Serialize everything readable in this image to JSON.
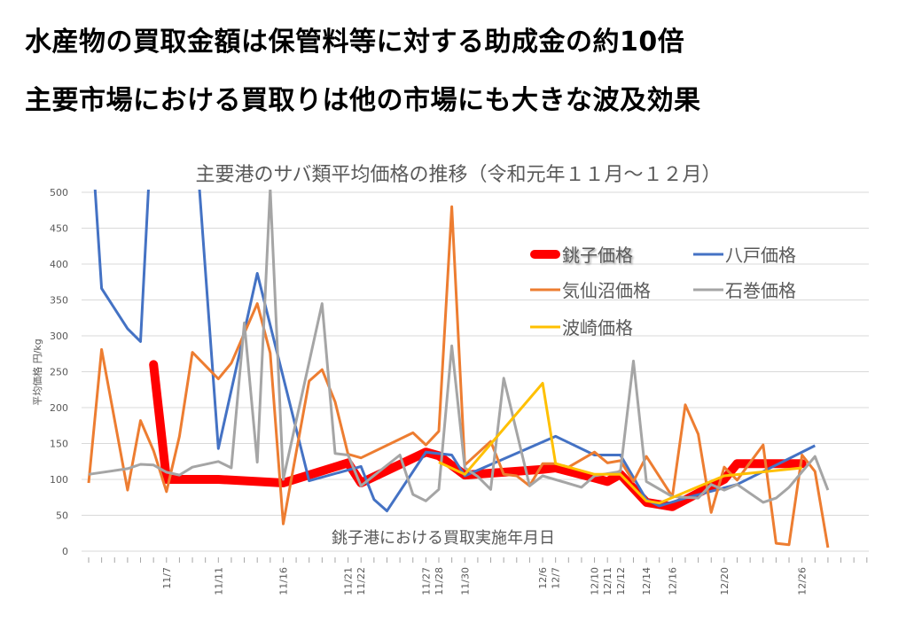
{
  "headlines": [
    "水産物の買取金額は保管料等に対する助成金の約10倍",
    "主要市場における買取りは他の市場にも大きな波及効果"
  ],
  "chart_data": {
    "type": "line",
    "title": "主要港のサバ類平均価格の推移（令和元年１１月～１２月）",
    "xlabel": "銚子港における買取実施年月日",
    "ylabel": "平均価格 円/kg",
    "ylim": [
      0,
      500
    ],
    "yticks": [
      0,
      50,
      100,
      150,
      200,
      250,
      300,
      350,
      400,
      450,
      500
    ],
    "x_range": [
      "11/1",
      "12/31"
    ],
    "x_tick_labels": [
      "11/7",
      "11/11",
      "11/16",
      "11/21",
      "11/22",
      "11/27",
      "11/28",
      "11/30",
      "12/6",
      "12/7",
      "12/10",
      "12/11",
      "12/12",
      "12/14",
      "12/16",
      "12/20",
      "12/26"
    ],
    "grid": true,
    "legend": "top-right",
    "series": [
      {
        "name": "銚子価格",
        "color": "#FF0000",
        "points": [
          [
            "11/6",
            260
          ],
          [
            "11/7",
            100
          ],
          [
            "11/11",
            100
          ],
          [
            "11/16",
            95
          ],
          [
            "11/21",
            123
          ],
          [
            "11/22",
            95
          ],
          [
            "11/27",
            138
          ],
          [
            "11/28",
            133
          ],
          [
            "11/30",
            106
          ],
          [
            "12/6",
            114
          ],
          [
            "12/7",
            116
          ],
          [
            "12/10",
            102
          ],
          [
            "12/11",
            97
          ],
          [
            "12/12",
            107
          ],
          [
            "12/14",
            68
          ],
          [
            "12/16",
            62
          ],
          [
            "12/20",
            100
          ],
          [
            "12/21",
            122
          ],
          [
            "12/26",
            122
          ]
        ]
      },
      {
        "name": "八戸価格",
        "color": "#4472C4",
        "points": [
          [
            "11/1",
            640
          ],
          [
            "11/2",
            366
          ],
          [
            "11/4",
            310
          ],
          [
            "11/5",
            292
          ],
          [
            "11/6",
            640
          ],
          [
            "11/9",
            640
          ],
          [
            "11/11",
            143
          ],
          [
            "11/14",
            387
          ],
          [
            "11/18",
            98
          ],
          [
            "11/22",
            118
          ],
          [
            "11/23",
            72
          ],
          [
            "11/24",
            56
          ],
          [
            "11/27",
            138
          ],
          [
            "11/29",
            134
          ],
          [
            "11/30",
            105
          ],
          [
            "12/7",
            160
          ],
          [
            "12/10",
            134
          ],
          [
            "12/12",
            134
          ],
          [
            "12/14",
            72
          ],
          [
            "12/15",
            63
          ],
          [
            "12/17",
            74
          ],
          [
            "12/21",
            93
          ],
          [
            "12/27",
            147
          ]
        ]
      },
      {
        "name": "気仙沼価格",
        "color": "#ED7D31",
        "points": [
          [
            "11/1",
            95
          ],
          [
            "11/2",
            281
          ],
          [
            "11/4",
            85
          ],
          [
            "11/5",
            182
          ],
          [
            "11/6",
            140
          ],
          [
            "11/7",
            83
          ],
          [
            "11/8",
            160
          ],
          [
            "11/9",
            277
          ],
          [
            "11/11",
            240
          ],
          [
            "11/12",
            262
          ],
          [
            "11/14",
            345
          ],
          [
            "11/15",
            276
          ],
          [
            "11/16",
            38
          ],
          [
            "11/18",
            237
          ],
          [
            "11/19",
            253
          ],
          [
            "11/20",
            208
          ],
          [
            "11/21",
            135
          ],
          [
            "11/22",
            130
          ],
          [
            "11/26",
            165
          ],
          [
            "11/27",
            148
          ],
          [
            "11/28",
            167
          ],
          [
            "11/29",
            480
          ],
          [
            "11/30",
            120
          ],
          [
            "12/2",
            153
          ],
          [
            "12/3",
            107
          ],
          [
            "12/4",
            105
          ],
          [
            "12/5",
            91
          ],
          [
            "12/6",
            122
          ],
          [
            "12/7",
            122
          ],
          [
            "12/8",
            117
          ],
          [
            "12/10",
            138
          ],
          [
            "12/11",
            123
          ],
          [
            "12/12",
            126
          ],
          [
            "12/13",
            97
          ],
          [
            "12/14",
            132
          ],
          [
            "12/16",
            76
          ],
          [
            "12/17",
            204
          ],
          [
            "12/18",
            163
          ],
          [
            "12/19",
            54
          ],
          [
            "12/20",
            117
          ],
          [
            "12/21",
            99
          ],
          [
            "12/23",
            148
          ],
          [
            "12/24",
            11
          ],
          [
            "12/25",
            9
          ],
          [
            "12/26",
            134
          ],
          [
            "12/27",
            111
          ],
          [
            "12/28",
            5
          ]
        ]
      },
      {
        "name": "石巻価格",
        "color": "#A5A5A5",
        "points": [
          [
            "11/1",
            107
          ],
          [
            "11/4",
            115
          ],
          [
            "11/5",
            121
          ],
          [
            "11/6",
            120
          ],
          [
            "11/7",
            110
          ],
          [
            "11/8",
            106
          ],
          [
            "11/9",
            117
          ],
          [
            "11/11",
            125
          ],
          [
            "11/12",
            116
          ],
          [
            "11/13",
            318
          ],
          [
            "11/14",
            124
          ],
          [
            "11/15",
            505
          ],
          [
            "11/16",
            100
          ],
          [
            "11/19",
            345
          ],
          [
            "11/20",
            136
          ],
          [
            "11/21",
            134
          ],
          [
            "11/22",
            91
          ],
          [
            "11/25",
            134
          ],
          [
            "11/26",
            79
          ],
          [
            "11/27",
            70
          ],
          [
            "11/28",
            86
          ],
          [
            "11/29",
            286
          ],
          [
            "11/30",
            116
          ],
          [
            "12/1",
            104
          ],
          [
            "12/2",
            86
          ],
          [
            "12/3",
            241
          ],
          [
            "12/5",
            91
          ],
          [
            "12/6",
            105
          ],
          [
            "12/9",
            89
          ],
          [
            "12/10",
            105
          ],
          [
            "12/12",
            111
          ],
          [
            "12/13",
            265
          ],
          [
            "12/14",
            97
          ],
          [
            "12/16",
            76
          ],
          [
            "12/18",
            74
          ],
          [
            "12/19",
            93
          ],
          [
            "12/20",
            85
          ],
          [
            "12/21",
            93
          ],
          [
            "12/23",
            68
          ],
          [
            "12/24",
            74
          ],
          [
            "12/25",
            89
          ],
          [
            "12/27",
            132
          ],
          [
            "12/28",
            85
          ]
        ]
      },
      {
        "name": "波崎価格",
        "color": "#FFC000",
        "points": [
          [
            "11/28",
            124
          ],
          [
            "11/30",
            107
          ],
          [
            "12/6",
            234
          ],
          [
            "12/7",
            122
          ],
          [
            "12/10",
            107
          ],
          [
            "12/12",
            107
          ],
          [
            "12/14",
            70
          ],
          [
            "12/15",
            67
          ],
          [
            "12/20",
            105
          ],
          [
            "12/26",
            116
          ]
        ]
      }
    ]
  }
}
